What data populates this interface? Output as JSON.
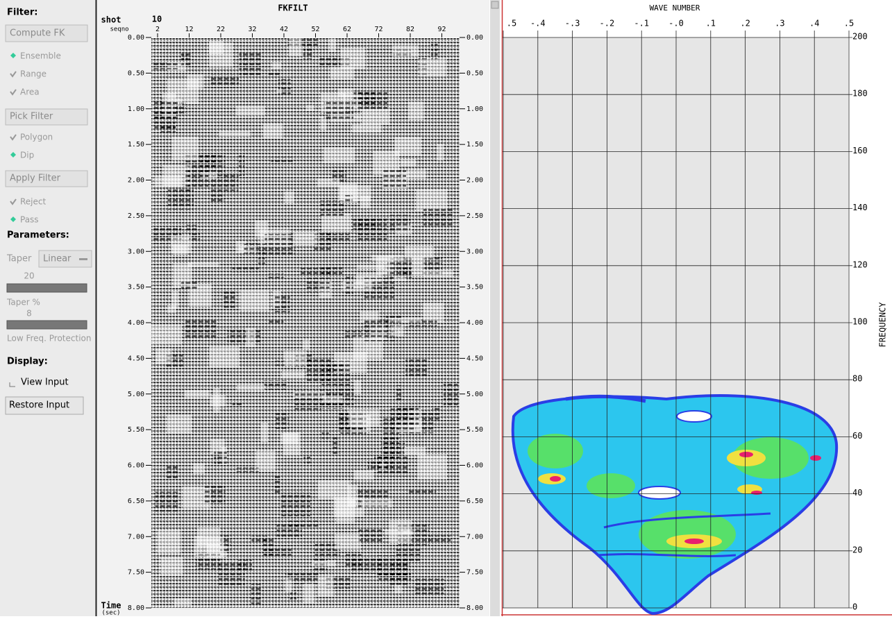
{
  "sidebar": {
    "filter_heading": "Filter:",
    "compute_fk": "Compute FK",
    "ensemble": "Ensemble",
    "range": "Range",
    "area": "Area",
    "pick_filter": "Pick Filter",
    "polygon": "Polygon",
    "dip": "Dip",
    "apply_filter": "Apply Filter",
    "reject": "Reject",
    "pass": "Pass",
    "parameters_heading": "Parameters:",
    "taper_label": "Taper",
    "taper_type": "Linear",
    "taper_value": "20",
    "taper_pct_label": "Taper %",
    "low_freq_value": "8",
    "low_freq_label": "Low Freq. Protection",
    "display_heading": "Display:",
    "view_input": "View Input",
    "restore_input": "Restore Input"
  },
  "seismic": {
    "title": "FKFILT",
    "shot_label": "shot",
    "shot_value": "10",
    "seqno_label": "seqno",
    "traces": [
      "2",
      "12",
      "22",
      "32",
      "42",
      "52",
      "62",
      "72",
      "82",
      "92"
    ],
    "time_ticks": [
      "0.00",
      "0.50",
      "1.00",
      "1.50",
      "2.00",
      "2.50",
      "3.00",
      "3.50",
      "4.00",
      "4.50",
      "5.00",
      "5.50",
      "6.00",
      "6.50",
      "7.00",
      "7.50",
      "8.00"
    ],
    "time_label": "Time",
    "time_unit": "(sec)"
  },
  "fk": {
    "x_label": "WAVE NUMBER",
    "x_ticks": [
      ".5",
      "-.4",
      "-.3",
      "-.2",
      "-.1",
      "-.0",
      ".1",
      ".2",
      ".3",
      ".4",
      ".5"
    ],
    "y_label": "FREQUENCY",
    "y_ticks": [
      "200",
      "180",
      "160",
      "140",
      "120",
      "100",
      "80",
      "60",
      "40",
      "20",
      "0"
    ]
  }
}
